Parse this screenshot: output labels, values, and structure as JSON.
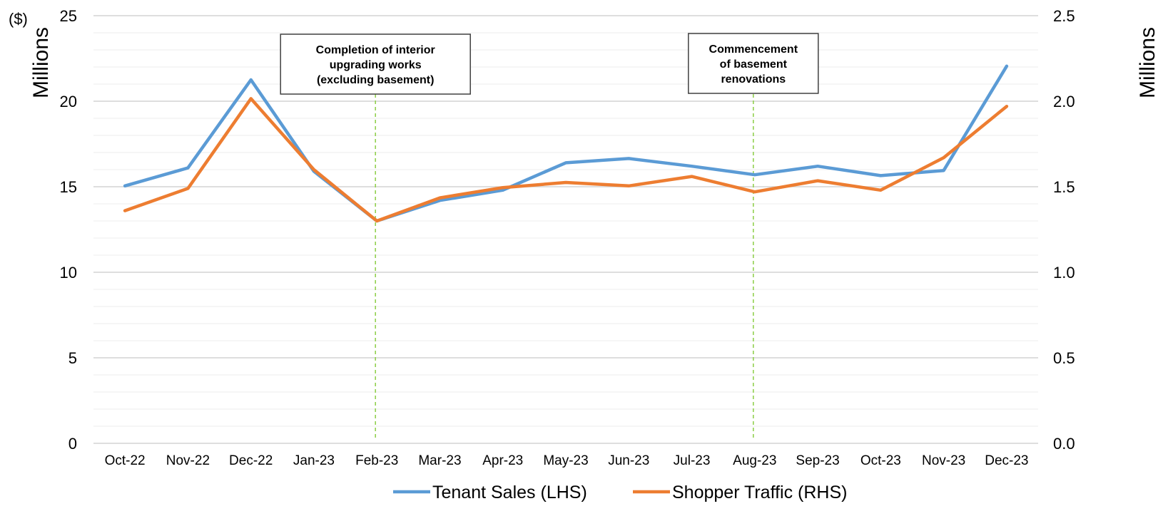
{
  "chart_data": {
    "type": "line",
    "categories": [
      "Oct-22",
      "Nov-22",
      "Dec-22",
      "Jan-23",
      "Feb-23",
      "Mar-23",
      "Apr-23",
      "May-23",
      "Jun-23",
      "Jul-23",
      "Aug-23",
      "Sep-23",
      "Oct-23",
      "Nov-23",
      "Dec-23"
    ],
    "series": [
      {
        "name": "Tenant Sales (LHS)",
        "axis": "left",
        "color": "#5B9BD5",
        "values": [
          15.05,
          16.1,
          21.25,
          15.9,
          13.0,
          14.2,
          14.8,
          16.4,
          16.65,
          16.2,
          15.7,
          16.2,
          15.65,
          15.95,
          22.05
        ]
      },
      {
        "name": "Shopper Traffic (RHS)",
        "axis": "right",
        "color": "#ED7D31",
        "values": [
          1.36,
          1.49,
          2.015,
          1.6,
          1.3,
          1.435,
          1.495,
          1.525,
          1.505,
          1.56,
          1.47,
          1.535,
          1.48,
          1.67,
          1.97
        ]
      }
    ],
    "left_axis": {
      "ylim": [
        0,
        25
      ],
      "ticks": [
        "0",
        "5",
        "10",
        "15",
        "20",
        "25"
      ],
      "unit_label": "Millions",
      "currency_label": "($)"
    },
    "right_axis": {
      "ylim": [
        0,
        2.5
      ],
      "ticks": [
        "0.0",
        "0.5",
        "1.0",
        "1.5",
        "2.0",
        "2.5"
      ],
      "unit_label": "Millions"
    },
    "grid": "horizontal",
    "annotations": [
      {
        "category": "Feb-23",
        "lines": [
          "Completion of interior",
          "upgrading works",
          "(excluding basement)"
        ],
        "line_color": "#92D050"
      },
      {
        "category": "Aug-23",
        "lines": [
          "Commencement",
          "of basement",
          "renovations"
        ],
        "line_color": "#92D050"
      }
    ],
    "legend_position": "bottom"
  }
}
